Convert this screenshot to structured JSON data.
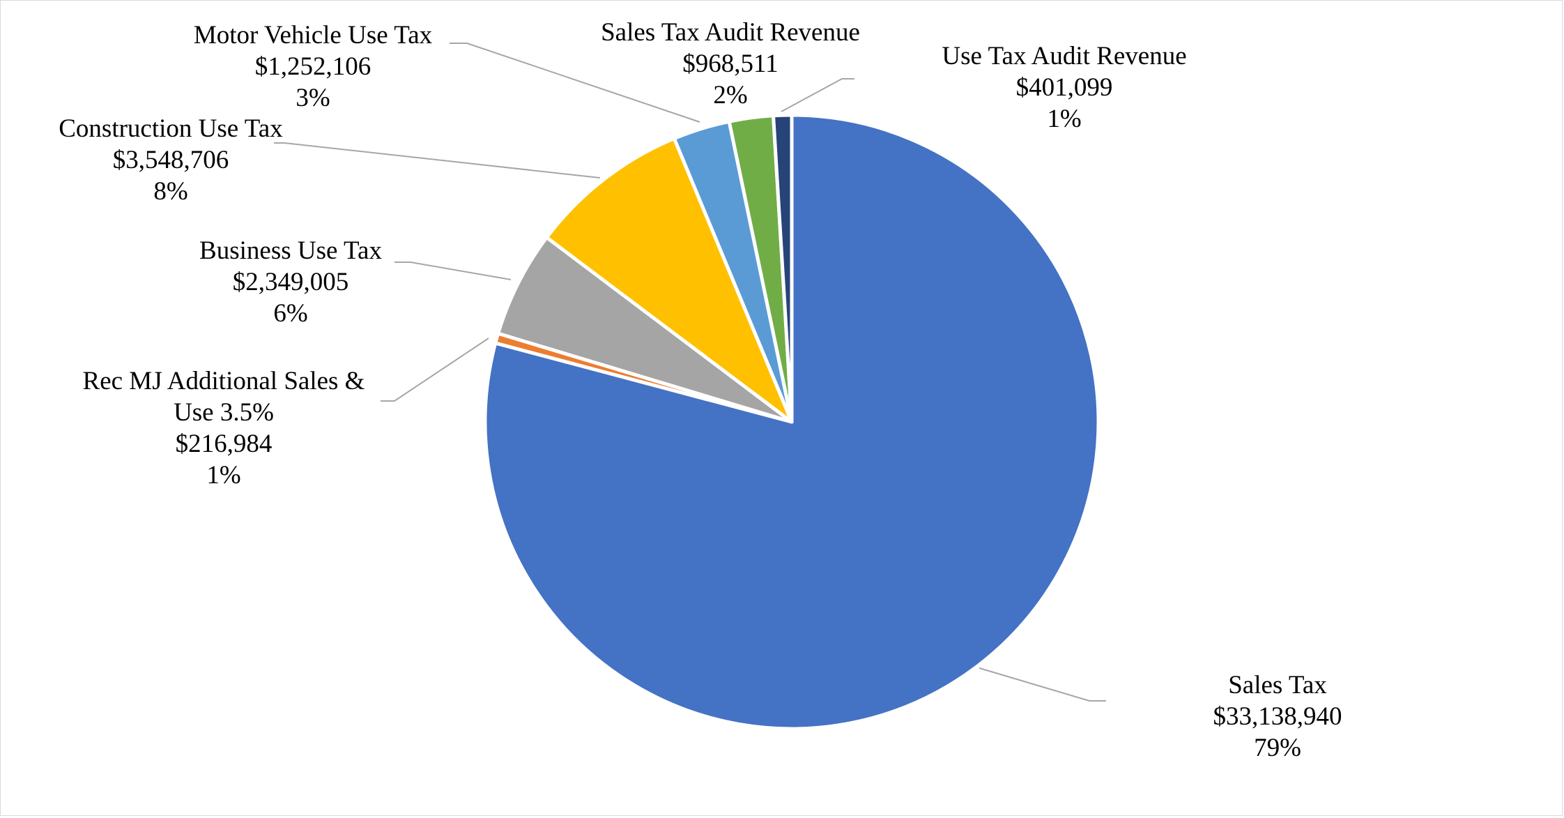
{
  "chart_data": {
    "type": "pie",
    "title": "",
    "start_angle": "12 o'clock",
    "direction": "clockwise",
    "slices": [
      {
        "label": "Sales Tax",
        "value": 33138940,
        "value_text": "$33,138,940",
        "percent": 79,
        "percent_text": "79%",
        "color": "#4472c4"
      },
      {
        "label": "Rec MJ Additional Sales & Use 3.5%",
        "label_lines": [
          "Rec MJ Additional Sales &",
          "Use 3.5%"
        ],
        "value": 216984,
        "value_text": "$216,984",
        "percent": 1,
        "percent_text": "1%",
        "color": "#ed7d31"
      },
      {
        "label": "Business Use Tax",
        "value": 2349005,
        "value_text": "$2,349,005",
        "percent": 6,
        "percent_text": "6%",
        "color": "#a5a5a5"
      },
      {
        "label": "Construction Use Tax",
        "value": 3548706,
        "value_text": "$3,548,706",
        "percent": 8,
        "percent_text": "8%",
        "color": "#ffc000"
      },
      {
        "label": "Motor Vehicle Use Tax",
        "value": 1252106,
        "value_text": "$1,252,106",
        "percent": 3,
        "percent_text": "3%",
        "color": "#5b9bd5"
      },
      {
        "label": "Sales Tax Audit Revenue",
        "value": 968511,
        "value_text": "$968,511",
        "percent": 2,
        "percent_text": "2%",
        "color": "#70ad47"
      },
      {
        "label": "Use Tax Audit Revenue",
        "value": 401099,
        "value_text": "$401,099",
        "percent": 1,
        "percent_text": "1%",
        "color": "#264478"
      }
    ]
  }
}
